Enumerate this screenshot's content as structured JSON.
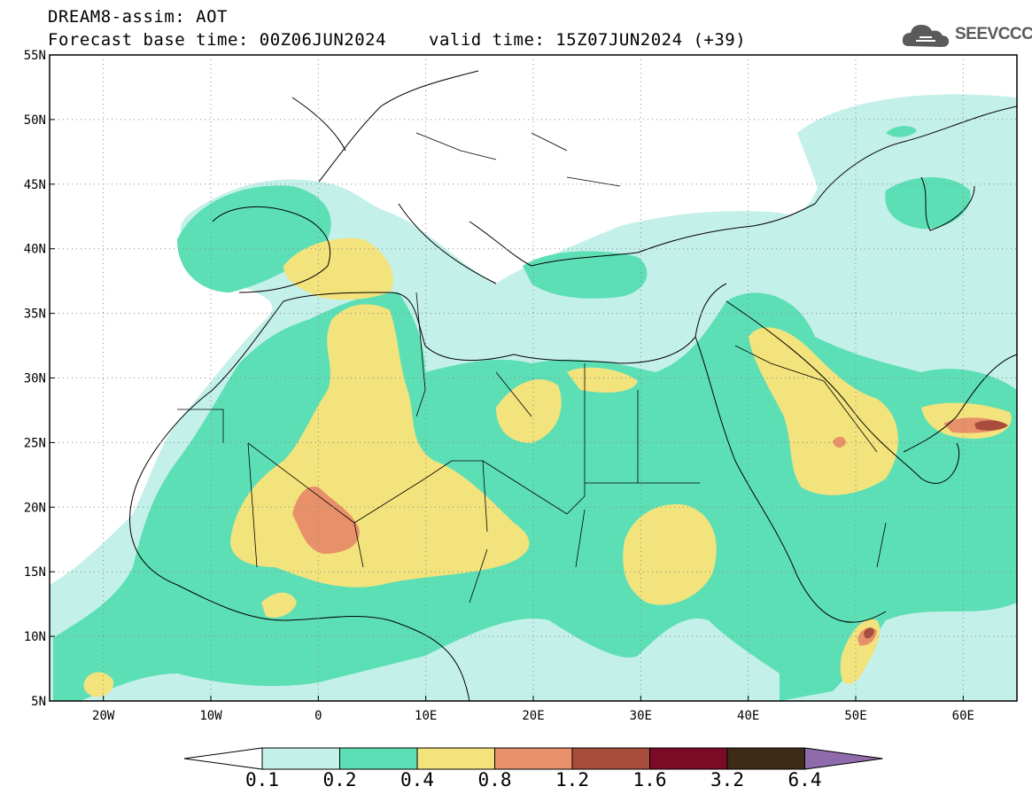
{
  "header": {
    "model_line": "DREAM8-assim: AOT",
    "base_time_line": "Forecast base time: 00Z06JUN2024",
    "valid_time_line": "valid time: 15Z07JUN2024 (+39)"
  },
  "logo": {
    "text": "SEEVCCC",
    "icon": "cloud-icon"
  },
  "map": {
    "variable": "AOT",
    "lat_ticks": [
      "55N",
      "50N",
      "45N",
      "40N",
      "35N",
      "30N",
      "25N",
      "20N",
      "15N",
      "10N",
      "5N"
    ],
    "lon_ticks": [
      "20W",
      "10W",
      "0",
      "10E",
      "20E",
      "30E",
      "40E",
      "50E",
      "60E"
    ],
    "lat_range": [
      5,
      55
    ],
    "lon_range": [
      -25,
      65
    ],
    "grid": "dotted"
  },
  "colorbar": {
    "labels": [
      "0.1",
      "0.2",
      "0.4",
      "0.8",
      "1.2",
      "1.6",
      "3.2",
      "6.4"
    ],
    "colors": [
      "#ffffff",
      "#c4f0ea",
      "#5ddfb6",
      "#f3e37c",
      "#e8906a",
      "#a84c3c",
      "#7a0a25",
      "#3d2a17",
      "#8f6bab"
    ]
  }
}
